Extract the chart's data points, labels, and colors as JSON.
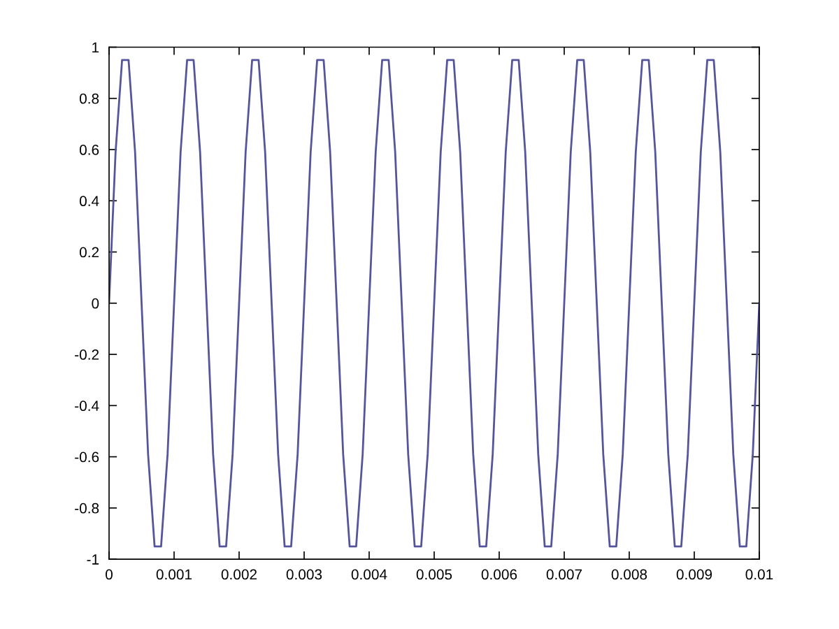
{
  "chart_data": {
    "type": "line",
    "x": [
      0,
      0.0001,
      0.0002,
      0.0003,
      0.0004,
      0.0005,
      0.0006,
      0.0007,
      0.0008,
      0.0009,
      0.001,
      0.0011,
      0.0012,
      0.0013,
      0.0014,
      0.0015,
      0.0016,
      0.0017,
      0.0018,
      0.0019,
      0.002,
      0.0021,
      0.0022,
      0.0023,
      0.0024,
      0.0025,
      0.0026,
      0.0027,
      0.0028,
      0.0029,
      0.003,
      0.0031,
      0.0032,
      0.0033,
      0.0034,
      0.0035,
      0.0036,
      0.0037,
      0.0038,
      0.0039,
      0.004,
      0.0041,
      0.0042,
      0.0043,
      0.0044,
      0.0045,
      0.0046,
      0.0047,
      0.0048,
      0.0049,
      0.005,
      0.0051,
      0.0052,
      0.0053,
      0.0054,
      0.0055,
      0.0056,
      0.0057,
      0.0058,
      0.0059,
      0.006,
      0.0061,
      0.0062,
      0.0063,
      0.0064,
      0.0065,
      0.0066,
      0.0067,
      0.0068,
      0.0069,
      0.007,
      0.0071,
      0.0072,
      0.0073,
      0.0074,
      0.0075,
      0.0076,
      0.0077,
      0.0078,
      0.0079,
      0.008,
      0.0081,
      0.0082,
      0.0083,
      0.0084,
      0.0085,
      0.0086,
      0.0087,
      0.0088,
      0.0089,
      0.009,
      0.0091,
      0.0092,
      0.0093,
      0.0094,
      0.0095,
      0.0096,
      0.0097,
      0.0098,
      0.0099,
      0.01
    ],
    "values": [
      0,
      0.59,
      0.95,
      0.95,
      0.59,
      0,
      -0.59,
      -0.95,
      -0.95,
      -0.59,
      0,
      0.59,
      0.95,
      0.95,
      0.59,
      0,
      -0.59,
      -0.95,
      -0.95,
      -0.59,
      0,
      0.59,
      0.95,
      0.95,
      0.59,
      0,
      -0.59,
      -0.95,
      -0.95,
      -0.59,
      0,
      0.59,
      0.95,
      0.95,
      0.59,
      0,
      -0.59,
      -0.95,
      -0.95,
      -0.59,
      0,
      0.59,
      0.95,
      0.95,
      0.59,
      0,
      -0.59,
      -0.95,
      -0.95,
      -0.59,
      0,
      0.59,
      0.95,
      0.95,
      0.59,
      0,
      -0.59,
      -0.95,
      -0.95,
      -0.59,
      0,
      0.59,
      0.95,
      0.95,
      0.59,
      0,
      -0.59,
      -0.95,
      -0.95,
      -0.59,
      0,
      0.59,
      0.95,
      0.95,
      0.59,
      0,
      -0.59,
      -0.95,
      -0.95,
      -0.59,
      0,
      0.59,
      0.95,
      0.95,
      0.59,
      0,
      -0.59,
      -0.95,
      -0.95,
      -0.59,
      0,
      0.59,
      0.95,
      0.95,
      0.59,
      0,
      -0.59,
      -0.95,
      -0.95,
      -0.59,
      0
    ],
    "color": "#55559c",
    "xlim": [
      0,
      0.01
    ],
    "ylim": [
      -1,
      1
    ],
    "xticks": [
      0,
      0.001,
      0.002,
      0.003,
      0.004,
      0.005,
      0.006,
      0.007,
      0.008,
      0.009,
      0.01
    ],
    "yticks": [
      -1,
      -0.8,
      -0.6,
      -0.4,
      -0.2,
      0,
      0.2,
      0.4,
      0.6,
      0.8,
      1
    ]
  }
}
